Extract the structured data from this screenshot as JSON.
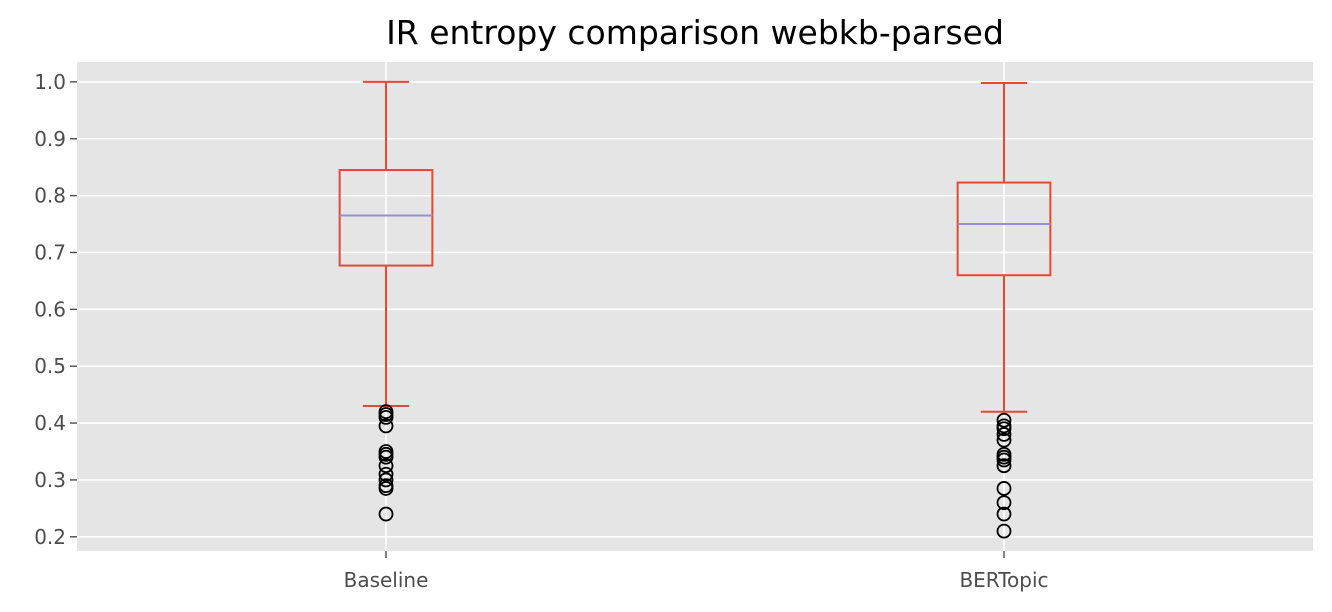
{
  "chart_data": {
    "type": "box",
    "title": "IR entropy comparison webkb-parsed",
    "xlabel": "",
    "ylabel": "",
    "ylim": [
      0.175,
      1.035
    ],
    "yticks": [
      0.2,
      0.3,
      0.4,
      0.5,
      0.6,
      0.7,
      0.8,
      0.9,
      1.0
    ],
    "ytick_labels": [
      "0.2",
      "0.3",
      "0.4",
      "0.5",
      "0.6",
      "0.7",
      "0.8",
      "0.9",
      "1.0"
    ],
    "grid": true,
    "legend": "none",
    "categories": [
      "Baseline",
      "BERTopic"
    ],
    "boxes": [
      {
        "label": "Baseline",
        "whisker_low": 0.43,
        "q1": 0.677,
        "median": 0.765,
        "q3": 0.845,
        "whisker_high": 1.0,
        "outliers": [
          0.24,
          0.285,
          0.29,
          0.3,
          0.31,
          0.325,
          0.34,
          0.345,
          0.35,
          0.395,
          0.41,
          0.415,
          0.42
        ]
      },
      {
        "label": "BERTopic",
        "whisker_low": 0.42,
        "q1": 0.66,
        "median": 0.75,
        "q3": 0.823,
        "whisker_high": 0.998,
        "outliers": [
          0.21,
          0.24,
          0.26,
          0.285,
          0.325,
          0.335,
          0.34,
          0.345,
          0.37,
          0.38,
          0.39,
          0.395,
          0.405
        ]
      }
    ],
    "colors": {
      "plot_background": "#e5e5e5",
      "grid": "#ffffff",
      "box": "#e24a33",
      "median": "#988ed5",
      "outlier": "#000000",
      "tick_text": "#4d4d4d",
      "title_text": "#000000"
    }
  }
}
